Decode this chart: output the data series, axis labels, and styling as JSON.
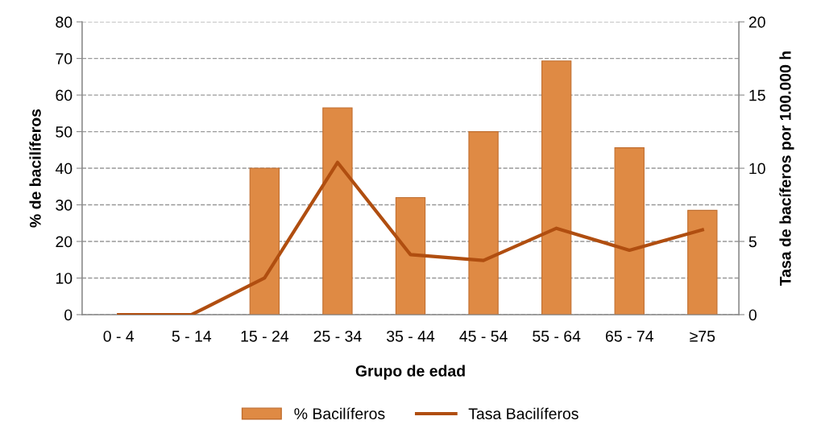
{
  "chart_data": {
    "type": "bar",
    "xlabel": "Grupo de edad",
    "ylabel": "% de bacilíferos",
    "y2label": "Tasa de bacíferos por 100.000 h",
    "categories": [
      "0 - 4",
      "5 - 14",
      "15 - 24",
      "25 - 34",
      "35 - 44",
      "45 - 54",
      "55 - 64",
      "65 - 74",
      "≥75"
    ],
    "series": [
      {
        "name": "% Bacilíferos",
        "color": "#df8a44",
        "values": [
          0,
          0,
          40,
          56.5,
          32,
          50,
          69.3,
          45.6,
          28.5
        ]
      },
      {
        "name": "Tasa Bacilíferos",
        "type": "line",
        "axis": "y2",
        "color": "#b04e10",
        "values": [
          0,
          0,
          2.5,
          10.4,
          4.1,
          3.7,
          5.9,
          4.4,
          5.8
        ]
      }
    ],
    "ylim": [
      0,
      80
    ],
    "yticks": [
      0,
      10,
      20,
      30,
      40,
      50,
      60,
      70,
      80
    ],
    "y2lim": [
      0,
      20
    ],
    "y2ticks": [
      0,
      5,
      10,
      15,
      20
    ],
    "grid": "y",
    "legend": "bottom",
    "marker": "none",
    "line_style": "solid"
  }
}
